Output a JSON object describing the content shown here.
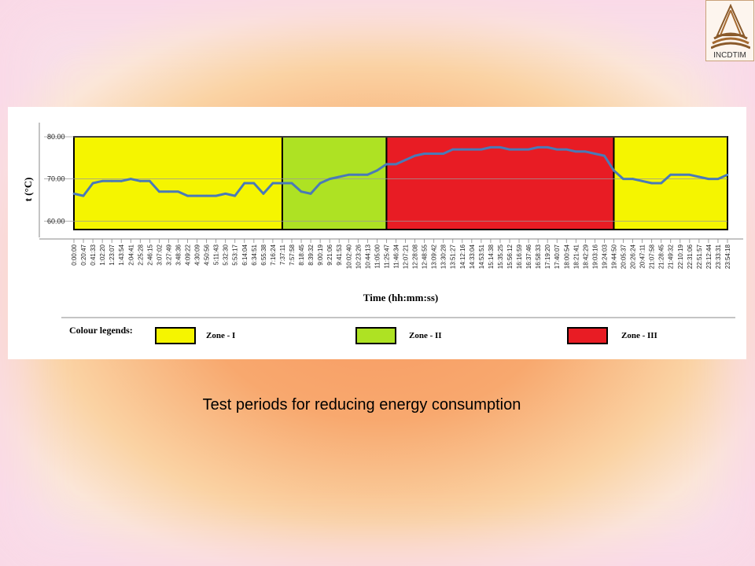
{
  "logo": {
    "label": "INCDTIM"
  },
  "caption": "Test periods for reducing energy consumption",
  "colors": {
    "zone_I": "#f5f500",
    "zone_II": "#aee223",
    "zone_III": "#e81c24",
    "line": "#4a7ab7"
  },
  "chart_data": {
    "type": "line",
    "ylabel": "t (°C)",
    "xlabel": "Time (hh:mm:ss)",
    "ylim": [
      58,
      80
    ],
    "yticks": [
      "60.00",
      "70.00",
      "80.00"
    ],
    "grid": "horizontal",
    "x": [
      "0:00:00",
      "0:20:47",
      "0:41:33",
      "1:02:20",
      "1:23:07",
      "1:43:54",
      "2:04:41",
      "2:25:28",
      "2:46:15",
      "3:07:02",
      "3:27:49",
      "3:48:36",
      "4:09:22",
      "4:30:09",
      "4:50:56",
      "5:11:43",
      "5:32:30",
      "5:53:17",
      "6:14:04",
      "6:34:51",
      "6:55:38",
      "7:16:24",
      "7:37:11",
      "7:57:58",
      "8:18:45",
      "8:39:32",
      "9:00:19",
      "9:21:06",
      "9:41:53",
      "10:02:40",
      "10:23:26",
      "10:44:13",
      "11:05:00",
      "11:25:47",
      "11:46:34",
      "12:07:21",
      "12:28:08",
      "12:48:55",
      "13:09:42",
      "13:30:28",
      "13:51:27",
      "14:12:16",
      "14:33:04",
      "14:53:51",
      "15:14:38",
      "15:35:25",
      "15:56:12",
      "16:16:59",
      "16:37:46",
      "16:58:33",
      "17:19:20",
      "17:40:07",
      "18:00:54",
      "18:21:41",
      "18:42:29",
      "19:03:16",
      "19:24:03",
      "19:44:50",
      "20:05:37",
      "20:26:24",
      "20:47:11",
      "21:07:58",
      "21:28:45",
      "21:49:32",
      "22:10:19",
      "22:31:06",
      "22:51:57",
      "23:12:44",
      "23:33:31",
      "23:54:18"
    ],
    "series": [
      {
        "values": [
          66.5,
          66,
          69,
          69.5,
          69.5,
          69.5,
          70,
          69.5,
          69.5,
          67,
          67,
          67,
          66,
          66,
          66,
          66,
          66.5,
          66,
          69,
          69,
          66.5,
          69,
          69,
          69,
          67,
          66.5,
          69,
          70,
          70.5,
          71,
          71,
          71,
          72,
          73.5,
          73.5,
          74.5,
          75.5,
          76,
          76,
          76,
          77,
          77,
          77,
          77,
          77.5,
          77.5,
          77,
          77,
          77,
          77.5,
          77.5,
          77,
          77,
          76.5,
          76.5,
          76,
          75.5,
          72,
          70,
          70,
          69.5,
          69,
          69,
          71,
          71,
          71,
          70.5,
          70,
          70,
          71
        ]
      }
    ],
    "zones": [
      {
        "label": "Zone - I",
        "zone": "I",
        "from": "0:00:00",
        "to": "7:37:11"
      },
      {
        "label": "Zone - II",
        "zone": "II",
        "from": "7:37:11",
        "to": "11:25:47"
      },
      {
        "label": "Zone - III",
        "zone": "III",
        "from": "11:25:47",
        "to": "19:44:50"
      },
      {
        "label": "Zone - I",
        "zone": "I",
        "from": "19:44:50",
        "to": "23:54:18"
      }
    ],
    "legend": {
      "title": "Colour legends:",
      "placement": "bottom",
      "items": [
        {
          "label": "Zone - I",
          "zone": "I"
        },
        {
          "label": "Zone - II",
          "zone": "II"
        },
        {
          "label": "Zone - III",
          "zone": "III"
        }
      ]
    }
  }
}
